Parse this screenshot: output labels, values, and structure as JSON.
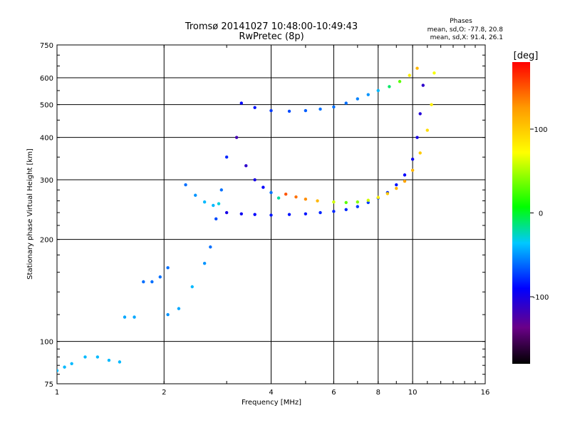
{
  "chart_data": {
    "type": "scatter",
    "title": "Tromsø 20141027 10:48:00-10:49:43",
    "subtitle": "RwPretec (8p)",
    "xlabel": "Frequency [MHz]",
    "ylabel": "Stationary phase Virtual Height [km]",
    "x_scale": "log",
    "y_scale": "log",
    "xlim": [
      1,
      16
    ],
    "ylim": [
      75,
      750
    ],
    "x_ticks": [
      1,
      2,
      4,
      6,
      8,
      10,
      16
    ],
    "y_ticks": [
      75,
      100,
      200,
      300,
      400,
      500,
      600,
      750
    ],
    "x_grid": [
      1,
      2,
      4,
      6,
      8,
      10,
      16
    ],
    "y_grid": [
      75,
      100,
      200,
      300,
      400,
      500,
      600,
      750
    ],
    "grid": true,
    "stats": {
      "heading": "Phases",
      "line_o": "mean, sd,O: -77.8, 20.8",
      "line_x": "mean, sd,X:  91.4, 26.1"
    },
    "colorbar": {
      "label": "[deg]",
      "range": [
        -180,
        180
      ],
      "ticks": [
        100,
        0,
        -100
      ]
    },
    "traces": [
      {
        "x": [
          3.3,
          3.6,
          4.0,
          4.5,
          5.0,
          5.5,
          6.0,
          6.5,
          7.0,
          7.5,
          8.0,
          8.6,
          9.2,
          9.8,
          10.3
        ],
        "y": [
          505,
          490,
          480,
          478,
          480,
          485,
          492,
          505,
          520,
          535,
          550,
          565,
          585,
          610,
          640
        ],
        "phase": [
          -90,
          -85,
          -75,
          -70,
          -65,
          -60,
          -60,
          -60,
          -55,
          -50,
          -40,
          -10,
          30,
          80,
          110
        ]
      },
      {
        "x": [
          3.0,
          3.3,
          3.6,
          4.0,
          4.5,
          5.0,
          5.5,
          6.0,
          6.5,
          7.0,
          7.5,
          8.0,
          8.5,
          9.0,
          9.5,
          10.0,
          10.3,
          10.5,
          10.7
        ],
        "y": [
          240,
          238,
          237,
          236,
          237,
          238,
          240,
          242,
          245,
          250,
          257,
          265,
          275,
          290,
          310,
          345,
          400,
          470,
          570
        ],
        "phase": [
          -100,
          -95,
          -90,
          -85,
          -85,
          -85,
          -80,
          -80,
          -80,
          -75,
          -75,
          -75,
          -80,
          -85,
          -90,
          -95,
          -100,
          -105,
          -110
        ]
      },
      {
        "x": [
          4.4,
          4.7,
          5.0,
          5.4,
          6.0,
          6.5,
          7.0,
          7.5,
          8.0,
          8.5,
          9.0,
          9.5,
          10.0,
          10.5,
          11.0,
          11.3,
          11.5
        ],
        "y": [
          272,
          267,
          263,
          260,
          258,
          257,
          258,
          261,
          266,
          273,
          283,
          297,
          320,
          360,
          420,
          500,
          620
        ],
        "phase": [
          150,
          140,
          130,
          110,
          60,
          30,
          40,
          60,
          80,
          100,
          110,
          120,
          110,
          100,
          90,
          80,
          70
        ]
      },
      {
        "x": [
          3.2,
          3.4,
          3.6,
          3.8,
          4.0,
          4.2
        ],
        "y": [
          400,
          330,
          300,
          285,
          275,
          265
        ],
        "phase": [
          -120,
          -110,
          -100,
          -90,
          -60,
          -20
        ]
      },
      {
        "x": [
          2.3,
          2.45,
          2.6,
          2.75,
          2.85
        ],
        "y": [
          290,
          270,
          258,
          252,
          255
        ],
        "phase": [
          -60,
          -50,
          -40,
          -40,
          -30
        ]
      },
      {
        "x": [
          2.05,
          2.2,
          2.4,
          2.6,
          2.7,
          2.8,
          2.9,
          3.0
        ],
        "y": [
          120,
          125,
          145,
          170,
          190,
          230,
          280,
          350
        ],
        "phase": [
          -50,
          -45,
          -40,
          -50,
          -60,
          -70,
          -60,
          -80
        ]
      },
      {
        "x": [
          1.0,
          1.05,
          1.1,
          1.2,
          1.3,
          1.4,
          1.5
        ],
        "y": [
          82,
          84,
          86,
          90,
          90,
          88,
          87
        ],
        "phase": [
          -40,
          -40,
          -40,
          -40,
          -40,
          -40,
          -40
        ]
      },
      {
        "x": [
          1.75,
          1.85,
          1.95,
          2.05
        ],
        "y": [
          150,
          150,
          155,
          165
        ],
        "phase": [
          -60,
          -60,
          -60,
          -60
        ]
      },
      {
        "x": [
          1.55,
          1.65
        ],
        "y": [
          118,
          118
        ],
        "phase": [
          -45,
          -45
        ]
      }
    ]
  }
}
